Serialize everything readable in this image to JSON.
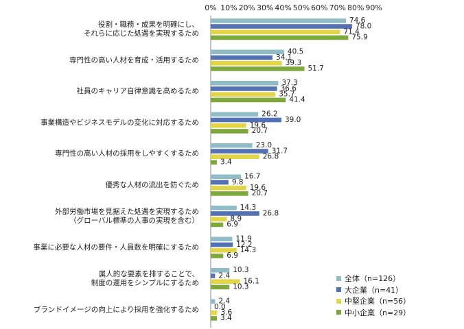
{
  "chart_data": {
    "type": "bar",
    "orientation": "horizontal",
    "grid": false,
    "legend_position": "bottom-right",
    "xlim": [
      0,
      90
    ],
    "x_ticks": [
      "0%",
      "10%",
      "20%",
      "30%",
      "40%",
      "50%",
      "60%",
      "70%",
      "80%",
      "90%"
    ],
    "categories": [
      [
        "役割・職務・成果を明確にし、",
        "それらに応じた処遇を実現するため"
      ],
      [
        "専門性の高い人材を育成・活用するため"
      ],
      [
        "社員のキャリア自律意識を高めるため"
      ],
      [
        "事業構造やビジネスモデルの変化に対応するため"
      ],
      [
        "専門性の高い人材の採用をしやすくするため"
      ],
      [
        "優秀な人材の流出を防ぐため"
      ],
      [
        "外部労働市場を見据えた処遇を実現するため",
        "（グローバル標準の人事の実現を含む）"
      ],
      [
        "事業に必要な人材の要件・人員数を明確にするため"
      ],
      [
        "属人的な要素を排することで、",
        "制度の運用をシンプルにするため"
      ],
      [
        "ブランドイメージの向上により採用を強化するため"
      ]
    ],
    "series": [
      {
        "name": "全体（n=126）",
        "color": "#8fbcc6",
        "values": [
          74.6,
          40.5,
          37.3,
          26.2,
          23.0,
          16.7,
          14.3,
          11.9,
          10.3,
          2.4
        ],
        "labels": [
          "74.6",
          "40.5",
          "37.3",
          "26.2",
          "23.0",
          "16.7",
          "14.3",
          "11.9",
          "10.3",
          "2.4"
        ]
      },
      {
        "name": "大企業（n=41）",
        "color": "#5471b4",
        "values": [
          78.0,
          34.1,
          36.6,
          39.0,
          31.7,
          9.8,
          26.8,
          12.2,
          2.4,
          0.0
        ],
        "labels": [
          "78.0",
          "34.1",
          "36.6",
          "39.0",
          "31.7",
          "9.8",
          "26.8",
          "12.2",
          "2.4",
          "0.0"
        ]
      },
      {
        "name": "中堅企業（n=56）",
        "color": "#e2d648",
        "values": [
          71.4,
          39.3,
          35.7,
          19.6,
          26.8,
          19.6,
          8.9,
          14.3,
          16.1,
          3.6
        ],
        "labels": [
          "71.4",
          "39.3",
          "35.7",
          "19.6",
          "26.8",
          "19.6",
          "8.9",
          "14.3",
          "16.1",
          "3.6"
        ]
      },
      {
        "name": "中小企業（n=29）",
        "color": "#7ea83c",
        "values": [
          75.9,
          51.7,
          41.4,
          20.7,
          3.4,
          20.7,
          6.9,
          6.9,
          10.3,
          3.4
        ],
        "labels": [
          "75.9",
          "51.7",
          "41.4",
          "20.7",
          "3.4",
          "20.7",
          "6.9",
          "6.9",
          "10.3",
          "3.4"
        ]
      }
    ]
  }
}
